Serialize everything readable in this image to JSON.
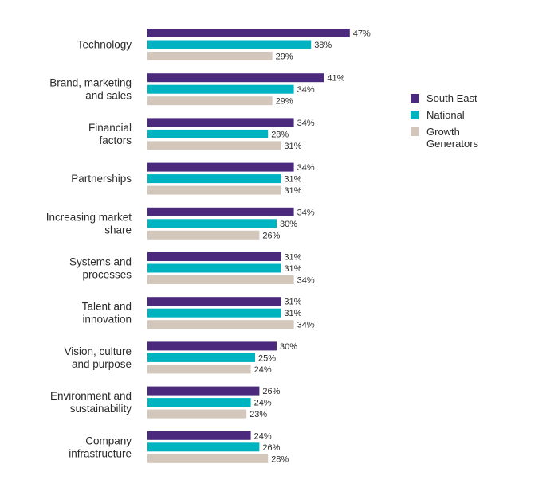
{
  "chart_data": {
    "type": "bar",
    "orientation": "horizontal",
    "categories": [
      "Technology",
      "Brand, marketing and sales",
      "Financial factors",
      "Partnerships",
      "Increasing market share",
      "Systems and processes",
      "Talent and innovation",
      "Vision, culture and purpose",
      "Environment and sustainability",
      "Company infrastructure"
    ],
    "category_lines": [
      [
        "Technology"
      ],
      [
        "Brand, marketing",
        "and sales"
      ],
      [
        "Financial",
        "factors"
      ],
      [
        "Partnerships"
      ],
      [
        "Increasing market",
        "share"
      ],
      [
        "Systems and",
        "processes"
      ],
      [
        "Talent and",
        "innovation"
      ],
      [
        "Vision, culture",
        "and purpose"
      ],
      [
        "Environment and",
        "sustainability"
      ],
      [
        "Company",
        "infrastructure"
      ]
    ],
    "series": [
      {
        "name": "South East",
        "color": "#4b2a7e",
        "values": [
          47,
          41,
          34,
          34,
          34,
          31,
          31,
          30,
          26,
          24
        ],
        "labels": [
          "47%",
          "41%",
          "34%",
          "34%",
          "34%",
          "31%",
          "31%",
          "30%",
          "26%",
          "24%"
        ]
      },
      {
        "name": "National",
        "color": "#00b3c1",
        "values": [
          38,
          34,
          28,
          31,
          30,
          31,
          31,
          25,
          24,
          26
        ],
        "labels": [
          "38%",
          "34%",
          "28%",
          "31%",
          "30%",
          "31%",
          "31%",
          "25%",
          "24%",
          "26%"
        ]
      },
      {
        "name": "Growth Generators",
        "color": "#d3c7bb",
        "values": [
          29,
          29,
          31,
          31,
          26,
          34,
          34,
          24,
          23,
          28
        ],
        "labels": [
          "29%",
          "29%",
          "31%",
          "31%",
          "26%",
          "34%",
          "34%",
          "24%",
          "23%",
          "28%"
        ]
      }
    ],
    "legend": {
      "position": "right",
      "entries": [
        {
          "lines": [
            "South East"
          ]
        },
        {
          "lines": [
            "National"
          ]
        },
        {
          "lines": [
            "Growth",
            "Generators"
          ]
        }
      ]
    },
    "xlim": [
      0,
      100
    ],
    "grid": false,
    "title": "",
    "xlabel": "",
    "ylabel": ""
  }
}
